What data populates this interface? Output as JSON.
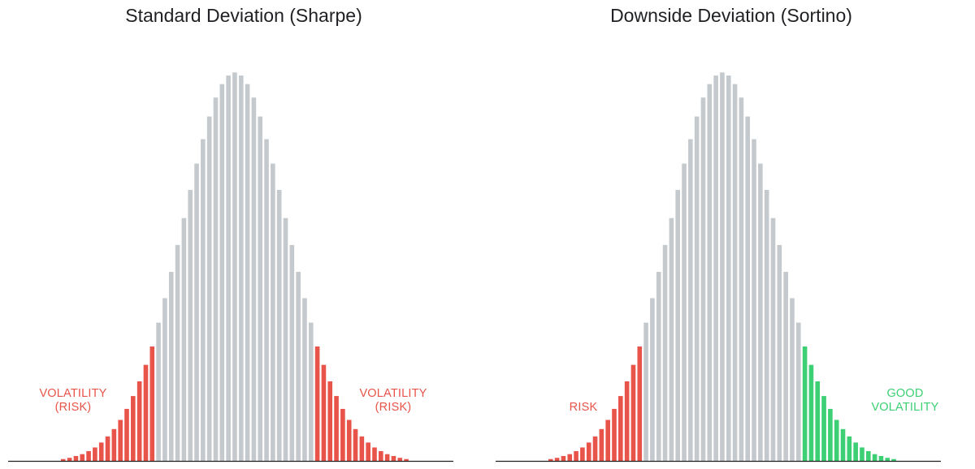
{
  "colors": {
    "neutral": "#c4c9ce",
    "risk": "#e8544a",
    "good": "#3ccf73",
    "axis": "#202124",
    "title": "#202124"
  },
  "chart_data": [
    {
      "type": "bar",
      "title": "Standard Deviation (Sharpe)",
      "xlabel": "",
      "ylabel": "",
      "values": [
        0.3,
        0.5,
        0.8,
        1.1,
        1.6,
        2.2,
        3.0,
        4.0,
        5.2,
        6.7,
        8.5,
        10.6,
        13.0,
        15.7,
        18.7,
        22.6,
        26.6,
        30.9,
        35.3,
        39.7,
        44.3,
        48.6,
        52.6,
        56.3,
        59.4,
        61.6,
        63.0,
        63.5,
        63.0,
        61.6,
        59.4,
        56.3,
        52.6,
        48.6,
        44.3,
        39.7,
        35.3,
        30.9,
        26.6,
        22.6,
        18.7,
        15.7,
        13.0,
        10.6,
        8.5,
        6.7,
        5.2,
        4.0,
        3.0,
        2.2,
        1.6,
        1.1,
        0.8,
        0.5,
        0.3
      ],
      "colors": [
        "risk",
        "risk",
        "risk",
        "risk",
        "risk",
        "risk",
        "risk",
        "risk",
        "risk",
        "risk",
        "risk",
        "risk",
        "risk",
        "risk",
        "risk",
        "neutral",
        "neutral",
        "neutral",
        "neutral",
        "neutral",
        "neutral",
        "neutral",
        "neutral",
        "neutral",
        "neutral",
        "neutral",
        "neutral",
        "neutral",
        "neutral",
        "neutral",
        "neutral",
        "neutral",
        "neutral",
        "neutral",
        "neutral",
        "neutral",
        "neutral",
        "neutral",
        "neutral",
        "neutral",
        "risk",
        "risk",
        "risk",
        "risk",
        "risk",
        "risk",
        "risk",
        "risk",
        "risk",
        "risk",
        "risk",
        "risk",
        "risk",
        "risk",
        "risk"
      ],
      "ylim": [
        0,
        65
      ],
      "grid": false,
      "annotations": [
        {
          "lines": [
            "VOLATILITY",
            "(RISK)"
          ],
          "color": "risk"
        },
        {
          "lines": [
            "VOLATILITY",
            "(RISK)"
          ],
          "color": "risk"
        }
      ]
    },
    {
      "type": "bar",
      "title": "Downside Deviation (Sortino)",
      "xlabel": "",
      "ylabel": "",
      "values": [
        0.3,
        0.5,
        0.8,
        1.1,
        1.6,
        2.2,
        3.0,
        4.0,
        5.2,
        6.7,
        8.5,
        10.6,
        13.0,
        15.7,
        18.7,
        22.6,
        26.6,
        30.9,
        35.3,
        39.7,
        44.3,
        48.6,
        52.6,
        56.3,
        59.4,
        61.6,
        63.0,
        63.5,
        63.0,
        61.6,
        59.4,
        56.3,
        52.6,
        48.6,
        44.3,
        39.7,
        35.3,
        30.9,
        26.6,
        22.6,
        18.7,
        15.7,
        13.0,
        10.6,
        8.5,
        6.7,
        5.2,
        4.0,
        3.0,
        2.2,
        1.6,
        1.1,
        0.8,
        0.5,
        0.3
      ],
      "colors": [
        "risk",
        "risk",
        "risk",
        "risk",
        "risk",
        "risk",
        "risk",
        "risk",
        "risk",
        "risk",
        "risk",
        "risk",
        "risk",
        "risk",
        "risk",
        "neutral",
        "neutral",
        "neutral",
        "neutral",
        "neutral",
        "neutral",
        "neutral",
        "neutral",
        "neutral",
        "neutral",
        "neutral",
        "neutral",
        "neutral",
        "neutral",
        "neutral",
        "neutral",
        "neutral",
        "neutral",
        "neutral",
        "neutral",
        "neutral",
        "neutral",
        "neutral",
        "neutral",
        "neutral",
        "good",
        "good",
        "good",
        "good",
        "good",
        "good",
        "good",
        "good",
        "good",
        "good",
        "good",
        "good",
        "good",
        "good",
        "good"
      ],
      "ylim": [
        0,
        65
      ],
      "grid": false,
      "annotations": [
        {
          "lines": [
            "RISK"
          ],
          "color": "risk"
        },
        {
          "lines": [
            "GOOD",
            "VOLATILITY"
          ],
          "color": "good"
        }
      ]
    }
  ]
}
